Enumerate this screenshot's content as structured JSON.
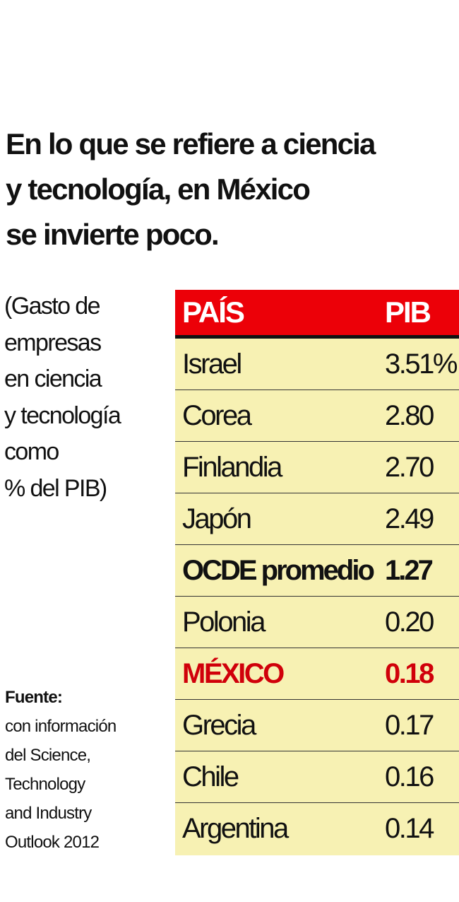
{
  "title_lines": [
    "En lo que se refiere a ciencia",
    "y tecnología, en México",
    "se invierte poco."
  ],
  "subtitle_lines": [
    "(Gasto de",
    "empresas",
    "en ciencia",
    "y tecnología",
    "como",
    "% del PIB)"
  ],
  "source": {
    "label": "Fuente:",
    "lines": [
      "con información",
      "del Science,",
      "Technology",
      "and Industry",
      "Outlook 2012"
    ]
  },
  "colors": {
    "header": "#ec0008",
    "row_bg": "#f7f1b3",
    "highlight": "#d0000a"
  },
  "chart_data": {
    "type": "table",
    "columns": [
      "PAÍS",
      "PIB"
    ],
    "rows": [
      {
        "country": "Israel",
        "value": "3.51%",
        "style": "normal"
      },
      {
        "country": "Corea",
        "value": "2.80",
        "style": "normal"
      },
      {
        "country": "Finlandia",
        "value": "2.70",
        "style": "normal"
      },
      {
        "country": "Japón",
        "value": "2.49",
        "style": "normal"
      },
      {
        "country": "OCDE promedio",
        "value": "1.27",
        "style": "bold"
      },
      {
        "country": "Polonia",
        "value": "0.20",
        "style": "normal"
      },
      {
        "country": "MÉXICO",
        "value": "0.18",
        "style": "highlight"
      },
      {
        "country": "Grecia",
        "value": "0.17",
        "style": "normal"
      },
      {
        "country": "Chile",
        "value": "0.16",
        "style": "normal"
      },
      {
        "country": "Argentina",
        "value": "0.14",
        "style": "normal"
      }
    ]
  }
}
